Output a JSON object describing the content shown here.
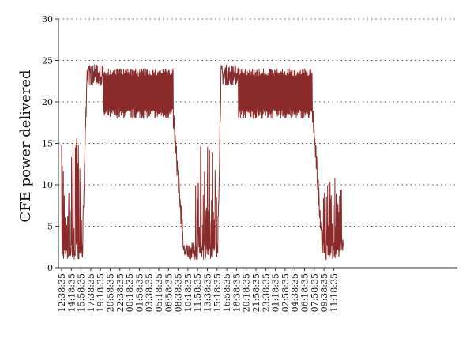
{
  "chart_data": {
    "type": "line",
    "title": "",
    "xlabel": "",
    "ylabel": "CFE power delivered",
    "ylim": [
      0,
      30
    ],
    "yticks": [
      0,
      5,
      10,
      15,
      20,
      25,
      30
    ],
    "grid": "dotted horizontal",
    "legend": "none",
    "x_tick_labels": [
      "12:38:35",
      "14:18:35",
      "15:58:35",
      "17:38:35",
      "19:18:35",
      "20:58:35",
      "22:38:35",
      "00:18:35",
      "01:58:35",
      "03:38:35",
      "05:18:35",
      "06:58:35",
      "08:38:35",
      "10:18:35",
      "11:58:35",
      "13:38:35",
      "15:18:35",
      "16:58:35",
      "18:38:35",
      "20:18:35",
      "21:58:35",
      "23:38:35",
      "01:18:35",
      "02:58:35",
      "04:38:35",
      "06:18:35",
      "07:58:35",
      "09:38:35",
      "11:18:35"
    ],
    "series": [
      {
        "color": "#8b2a2a",
        "segments": [
          {
            "from": 0.0,
            "to": 2.2,
            "low": 1,
            "high": 16,
            "shape": "noisy-low"
          },
          {
            "from": 2.2,
            "to": 2.6,
            "low": 5,
            "high": 23,
            "shape": "rise"
          },
          {
            "from": 2.6,
            "to": 4.3,
            "low": 22,
            "high": 24.5,
            "shape": "plateau"
          },
          {
            "from": 4.3,
            "to": 11.5,
            "low": 18,
            "high": 24,
            "shape": "oscillate"
          },
          {
            "from": 11.5,
            "to": 12.6,
            "low": 2,
            "high": 18,
            "shape": "fall"
          },
          {
            "from": 12.6,
            "to": 13.8,
            "low": 1,
            "high": 3,
            "shape": "noisy-low"
          },
          {
            "from": 13.8,
            "to": 16.1,
            "low": 1,
            "high": 15,
            "shape": "noisy-low"
          },
          {
            "from": 16.1,
            "to": 16.4,
            "low": 5,
            "high": 23,
            "shape": "rise"
          },
          {
            "from": 16.4,
            "to": 18.2,
            "low": 22,
            "high": 24.5,
            "shape": "plateau"
          },
          {
            "from": 18.2,
            "to": 25.8,
            "low": 18,
            "high": 24,
            "shape": "oscillate"
          },
          {
            "from": 25.8,
            "to": 26.9,
            "low": 2,
            "high": 19,
            "shape": "fall"
          },
          {
            "from": 26.9,
            "to": 29.0,
            "low": 1,
            "high": 11,
            "shape": "noisy-low"
          }
        ]
      }
    ]
  }
}
